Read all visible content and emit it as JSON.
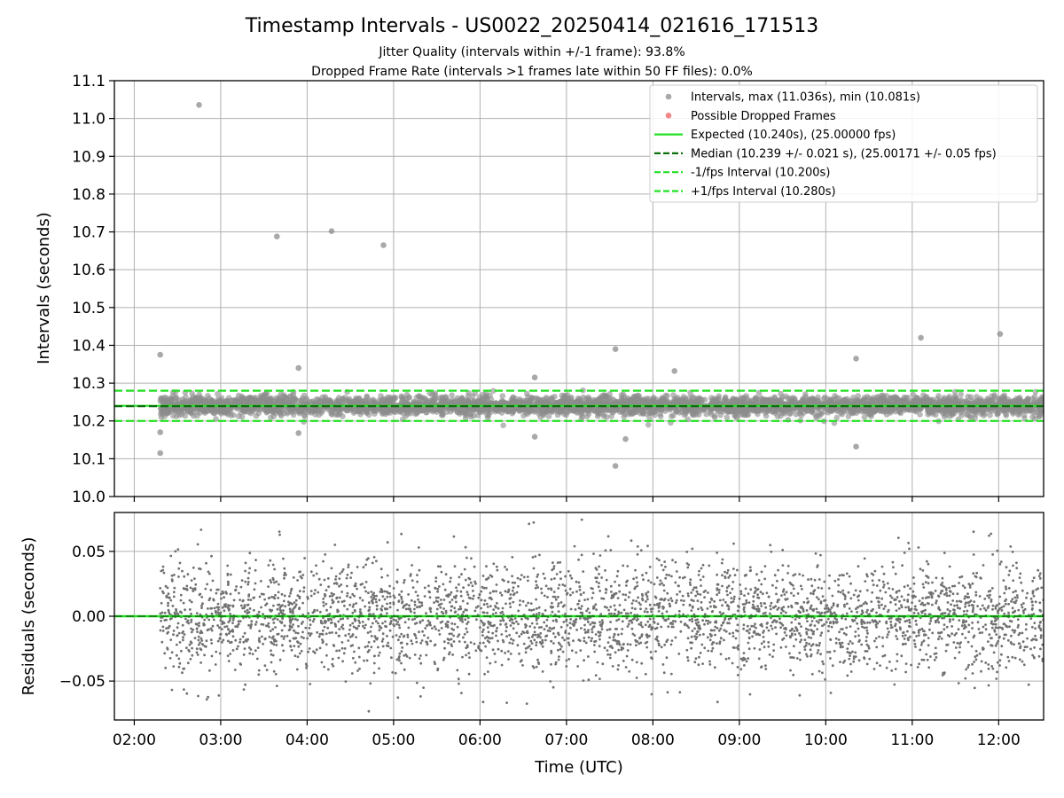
{
  "chart_data": [
    {
      "type": "scatter",
      "panel": "intervals",
      "title": "Timestamp Intervals - US0022_20250414_021616_171513",
      "subtitle_lines": [
        "Jitter Quality (intervals within +/-1 frame): 93.8%",
        "Dropped Frame Rate (intervals >1 frames late within 50 FF files): 0.0%"
      ],
      "ylabel": "Intervals (seconds)",
      "xlabel": "",
      "ylim": [
        10.0,
        11.1
      ],
      "xlim_hours": [
        1.77,
        12.52
      ],
      "yticks": [
        "10.0",
        "10.1",
        "10.2",
        "10.3",
        "10.4",
        "10.5",
        "10.6",
        "10.7",
        "10.8",
        "10.9",
        "11.0",
        "11.1"
      ],
      "grid": true,
      "legend_position": "top-right",
      "legend": [
        {
          "label": "Intervals, max (11.036s), min (10.081s)",
          "kind": "marker",
          "color": "#8c8c8c"
        },
        {
          "label": "Possible Dropped Frames",
          "kind": "marker",
          "color": "#f06060"
        },
        {
          "label": "Expected (10.240s), (25.00000 fps)",
          "kind": "solid",
          "color": "#22e022"
        },
        {
          "label": "Median (10.239 +/- 0.021 s), (25.00171 +/- 0.05 fps)",
          "kind": "dashed",
          "color": "#0a6e0a"
        },
        {
          "label": "-1/fps Interval (10.200s)",
          "kind": "dashed",
          "color": "#22e022"
        },
        {
          "label": "+1/fps Interval (10.280s)",
          "kind": "dashed",
          "color": "#22e022"
        }
      ],
      "lines": {
        "expected": 10.24,
        "median": 10.239,
        "minus_fps": 10.2,
        "plus_fps": 10.28
      },
      "series": [
        {
          "name": "Intervals, max (11.036s), min (10.081s)",
          "x_start_hours": 2.3,
          "x_end_hours": 12.52,
          "center": 10.24,
          "spread": 0.021,
          "n_points": 3600,
          "outliers": [
            {
              "x": "02:18",
              "y": 10.375
            },
            {
              "x": "02:18",
              "y": 10.115
            },
            {
              "x": "02:18",
              "y": 10.17
            },
            {
              "x": "02:45",
              "y": 11.036
            },
            {
              "x": "03:39",
              "y": 10.688
            },
            {
              "x": "03:54",
              "y": 10.34
            },
            {
              "x": "03:54",
              "y": 10.168
            },
            {
              "x": "04:17",
              "y": 10.702
            },
            {
              "x": "04:53",
              "y": 10.665
            },
            {
              "x": "06:38",
              "y": 10.158
            },
            {
              "x": "06:38",
              "y": 10.315
            },
            {
              "x": "07:34",
              "y": 10.39
            },
            {
              "x": "07:34",
              "y": 10.081
            },
            {
              "x": "07:41",
              "y": 10.152
            },
            {
              "x": "08:15",
              "y": 10.332
            },
            {
              "x": "10:21",
              "y": 10.365
            },
            {
              "x": "10:21",
              "y": 10.132
            },
            {
              "x": "11:06",
              "y": 10.42
            },
            {
              "x": "12:01",
              "y": 10.43
            }
          ]
        }
      ]
    },
    {
      "type": "scatter",
      "panel": "residuals",
      "ylabel": "Residuals (seconds)",
      "xlabel": "Time (UTC)",
      "ylim": [
        -0.08,
        0.08
      ],
      "yticks": [
        "−0.05",
        "0.00",
        "0.05"
      ],
      "xticks": [
        "02:00",
        "03:00",
        "04:00",
        "05:00",
        "06:00",
        "07:00",
        "08:00",
        "09:00",
        "10:00",
        "11:00",
        "12:00"
      ],
      "grid": true,
      "lines": {
        "zero": 0.0
      },
      "series": [
        {
          "name": "",
          "x_start_hours": 2.3,
          "x_end_hours": 12.52,
          "spread": 0.021,
          "n_points": 3600,
          "color": "#707070"
        }
      ]
    }
  ]
}
